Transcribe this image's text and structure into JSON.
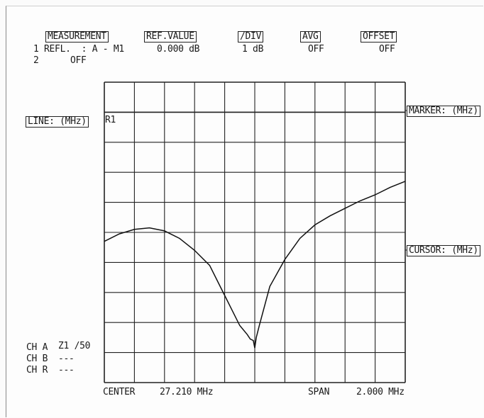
{
  "header": {
    "measurement_label": "MEASUREMENT",
    "refvalue_label": "REF.VALUE",
    "div_label": "/DIV",
    "avg_label": "AVG",
    "offset_label": "OFFSET",
    "row1_index": "1",
    "row1_mode": "REFL.  : A - M1",
    "row1_refvalue": "0.000 dB",
    "row1_div": "1 dB",
    "row1_avg": "OFF",
    "row1_offset": "OFF",
    "row2_index": "2",
    "row2_mode": "OFF"
  },
  "side": {
    "line_label": "LINE: (MHz)",
    "marker_label": "MARKER: (MHz)",
    "cursor_label": "CURSOR: (MHz)",
    "trace_tag": "R1"
  },
  "channels": [
    {
      "name": "CH A",
      "value": "Z1 /50"
    },
    {
      "name": "CH B",
      "value": "---"
    },
    {
      "name": "CH R",
      "value": "---"
    }
  ],
  "footer": {
    "center_label": "CENTER",
    "center_value": "27.210 MHz",
    "span_label": "SPAN",
    "span_value": "2.000 MHz"
  },
  "chart_data": {
    "type": "line",
    "title": "",
    "xlabel": "",
    "ylabel": "",
    "xlim": [
      26.21,
      28.21
    ],
    "ylim": [
      -10,
      0
    ],
    "grid": true,
    "series": [
      {
        "x": [
          26.21,
          26.31,
          26.41,
          26.51,
          26.61,
          26.71,
          26.81,
          26.91,
          27.01,
          27.06,
          27.11,
          27.16,
          27.18,
          27.2,
          27.21,
          27.22,
          27.24,
          27.31,
          27.41,
          27.51,
          27.61,
          27.71,
          27.81,
          27.91,
          28.01,
          28.11,
          28.21
        ],
        "y": [
          -5.3,
          -5.05,
          -4.9,
          -4.85,
          -4.95,
          -5.2,
          -5.6,
          -6.1,
          -7.1,
          -7.6,
          -8.1,
          -8.4,
          -8.55,
          -8.6,
          -8.85,
          -8.5,
          -8.1,
          -6.8,
          -5.9,
          -5.2,
          -4.75,
          -4.45,
          -4.2,
          -3.95,
          -3.75,
          -3.5,
          -3.3
        ]
      }
    ]
  }
}
